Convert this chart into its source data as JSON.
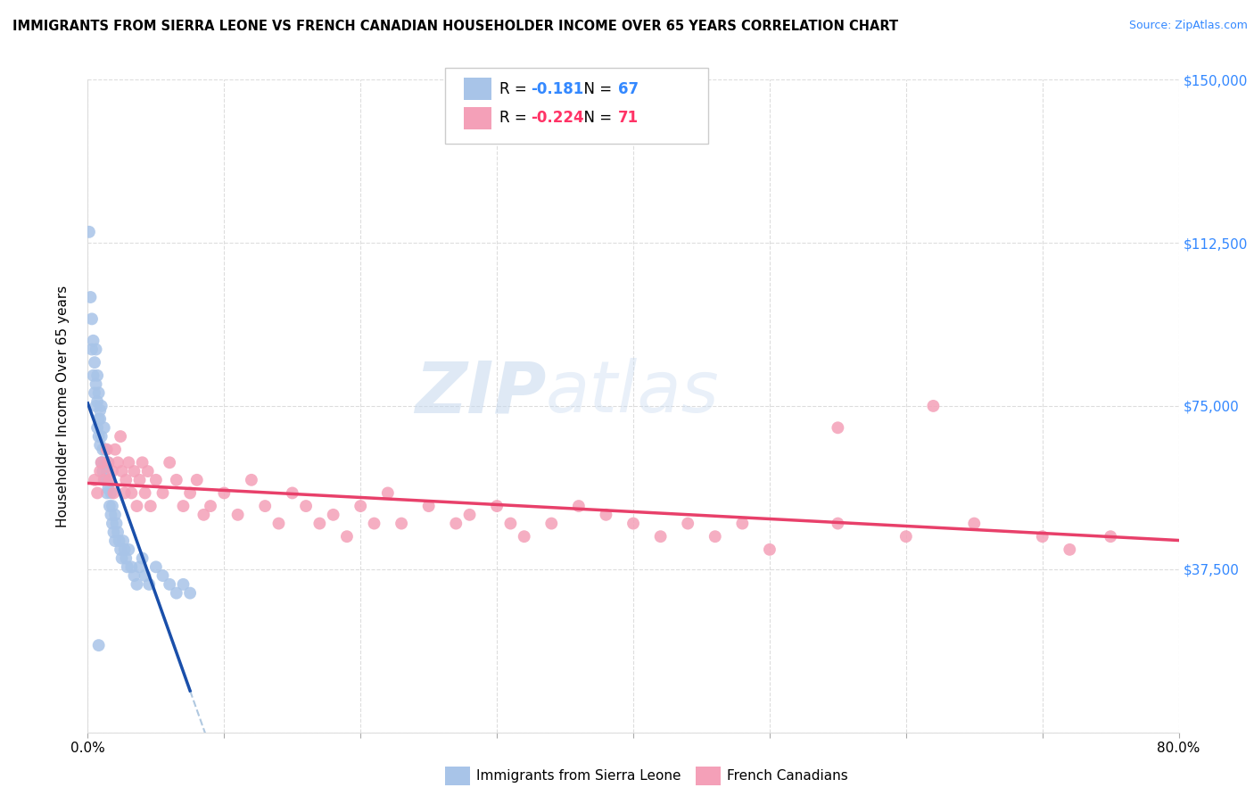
{
  "title": "IMMIGRANTS FROM SIERRA LEONE VS FRENCH CANADIAN HOUSEHOLDER INCOME OVER 65 YEARS CORRELATION CHART",
  "source": "Source: ZipAtlas.com",
  "ylabel": "Householder Income Over 65 years",
  "xlim": [
    0.0,
    0.8
  ],
  "ylim": [
    0,
    150000
  ],
  "yticks": [
    0,
    37500,
    75000,
    112500,
    150000
  ],
  "ytick_labels": [
    "",
    "$37,500",
    "$75,000",
    "$112,500",
    "$150,000"
  ],
  "xticks": [
    0.0,
    0.1,
    0.2,
    0.3,
    0.4,
    0.5,
    0.6,
    0.7,
    0.8
  ],
  "legend_labels": [
    "Immigrants from Sierra Leone",
    "French Canadians"
  ],
  "R_blue": -0.181,
  "N_blue": 67,
  "R_pink": -0.224,
  "N_pink": 71,
  "blue_color": "#a8c4e8",
  "blue_line_color": "#1a4faa",
  "pink_color": "#f4a0b8",
  "pink_line_color": "#e8406a",
  "watermark_zip": "ZIP",
  "watermark_atlas": "atlas",
  "blue_x": [
    0.001,
    0.002,
    0.003,
    0.003,
    0.004,
    0.004,
    0.005,
    0.005,
    0.006,
    0.006,
    0.006,
    0.007,
    0.007,
    0.007,
    0.008,
    0.008,
    0.008,
    0.009,
    0.009,
    0.009,
    0.01,
    0.01,
    0.01,
    0.011,
    0.011,
    0.012,
    0.012,
    0.012,
    0.013,
    0.013,
    0.014,
    0.014,
    0.015,
    0.015,
    0.016,
    0.016,
    0.017,
    0.017,
    0.018,
    0.018,
    0.019,
    0.02,
    0.02,
    0.021,
    0.022,
    0.023,
    0.024,
    0.025,
    0.026,
    0.027,
    0.028,
    0.029,
    0.03,
    0.032,
    0.034,
    0.036,
    0.038,
    0.04,
    0.042,
    0.045,
    0.05,
    0.055,
    0.06,
    0.065,
    0.07,
    0.075,
    0.008
  ],
  "blue_y": [
    115000,
    100000,
    95000,
    88000,
    90000,
    82000,
    85000,
    78000,
    80000,
    75000,
    88000,
    82000,
    76000,
    70000,
    72000,
    68000,
    78000,
    74000,
    66000,
    72000,
    68000,
    62000,
    75000,
    65000,
    60000,
    62000,
    58000,
    70000,
    58000,
    65000,
    55000,
    60000,
    56000,
    62000,
    52000,
    58000,
    50000,
    55000,
    48000,
    52000,
    46000,
    44000,
    50000,
    48000,
    46000,
    44000,
    42000,
    40000,
    44000,
    42000,
    40000,
    38000,
    42000,
    38000,
    36000,
    34000,
    38000,
    40000,
    36000,
    34000,
    38000,
    36000,
    34000,
    32000,
    34000,
    32000,
    20000
  ],
  "pink_x": [
    0.005,
    0.007,
    0.009,
    0.01,
    0.012,
    0.014,
    0.015,
    0.016,
    0.018,
    0.019,
    0.02,
    0.022,
    0.024,
    0.025,
    0.027,
    0.028,
    0.03,
    0.032,
    0.034,
    0.036,
    0.038,
    0.04,
    0.042,
    0.044,
    0.046,
    0.05,
    0.055,
    0.06,
    0.065,
    0.07,
    0.075,
    0.08,
    0.085,
    0.09,
    0.1,
    0.11,
    0.12,
    0.13,
    0.14,
    0.15,
    0.16,
    0.17,
    0.18,
    0.19,
    0.2,
    0.21,
    0.22,
    0.23,
    0.25,
    0.27,
    0.28,
    0.3,
    0.31,
    0.32,
    0.34,
    0.36,
    0.38,
    0.4,
    0.42,
    0.44,
    0.46,
    0.48,
    0.5,
    0.55,
    0.6,
    0.65,
    0.7,
    0.72,
    0.75,
    0.55,
    0.62
  ],
  "pink_y": [
    58000,
    55000,
    60000,
    62000,
    58000,
    65000,
    62000,
    58000,
    60000,
    55000,
    65000,
    62000,
    68000,
    60000,
    55000,
    58000,
    62000,
    55000,
    60000,
    52000,
    58000,
    62000,
    55000,
    60000,
    52000,
    58000,
    55000,
    62000,
    58000,
    52000,
    55000,
    58000,
    50000,
    52000,
    55000,
    50000,
    58000,
    52000,
    48000,
    55000,
    52000,
    48000,
    50000,
    45000,
    52000,
    48000,
    55000,
    48000,
    52000,
    48000,
    50000,
    52000,
    48000,
    45000,
    48000,
    52000,
    50000,
    48000,
    45000,
    48000,
    45000,
    48000,
    42000,
    48000,
    45000,
    48000,
    45000,
    42000,
    45000,
    70000,
    75000
  ]
}
